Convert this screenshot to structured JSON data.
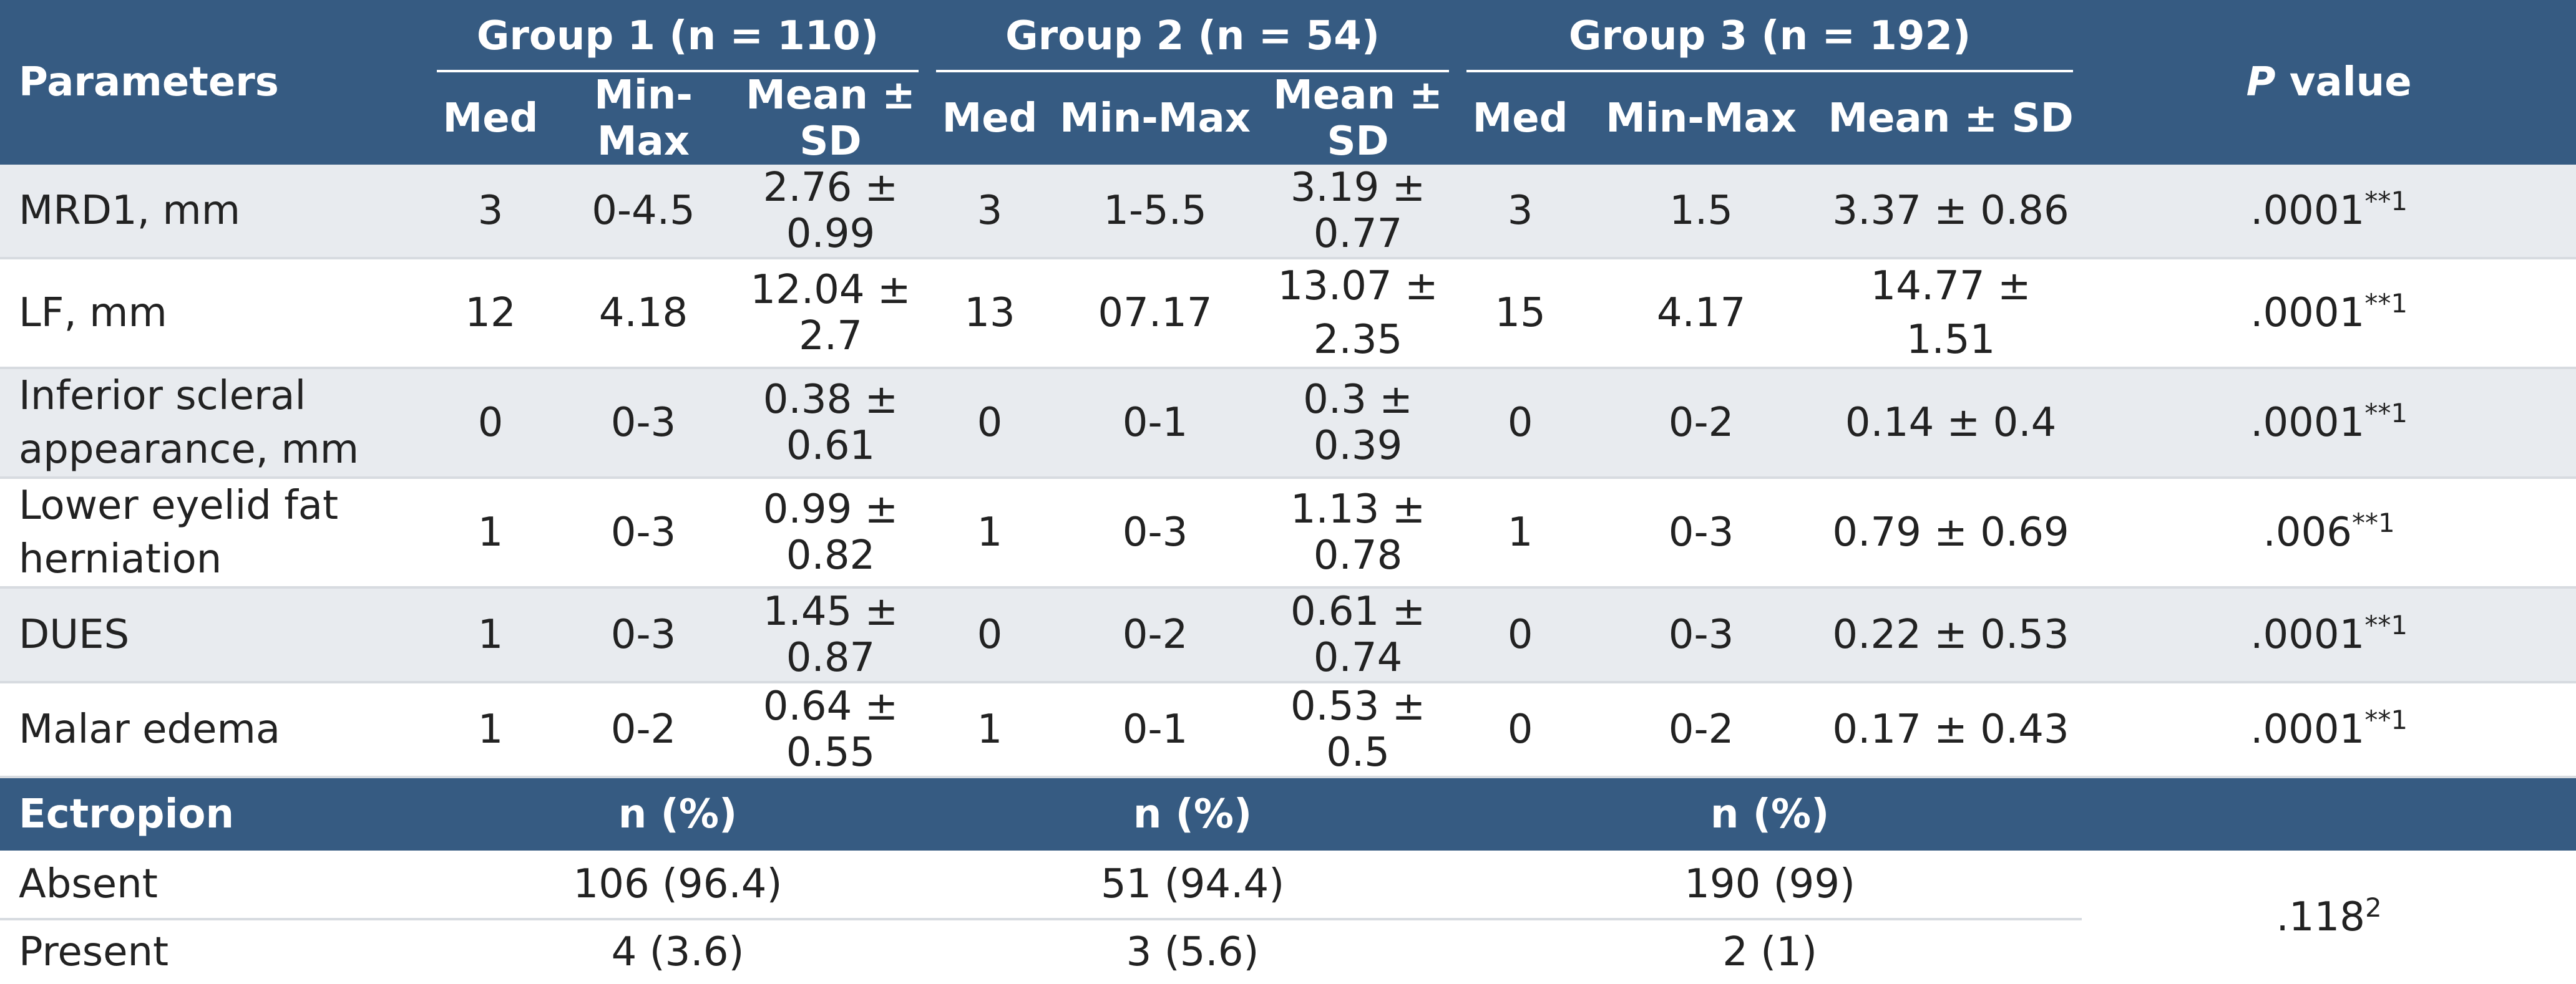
{
  "table": {
    "header": {
      "parameters": "Parameters",
      "groups": [
        "Group 1 (n = 110)",
        "Group 2 (n = 54)",
        "Group 3 (n = 192)"
      ],
      "p_value_italic": "P",
      "p_value_rest": " value",
      "sub_columns": [
        "Med",
        "Min-Max",
        "Mean ± SD"
      ]
    },
    "rows": [
      {
        "name": "MRD1, mm",
        "g1": [
          "3",
          "0-4.5",
          "2.76 ± 0.99"
        ],
        "g2": [
          "3",
          "1-5.5",
          "3.19 ± 0.77"
        ],
        "g3": [
          "3",
          "1.5",
          "3.37 ± 0.86"
        ],
        "p": ".0001",
        "p_sup": "**1"
      },
      {
        "name": "LF, mm",
        "g1": [
          "12",
          "4.18",
          "12.04 ± 2.7"
        ],
        "g2": [
          "13",
          "07.17",
          "13.07 ± 2.35"
        ],
        "g3": [
          "15",
          "4.17",
          "14.77 ± 1.51"
        ],
        "p": ".0001",
        "p_sup": "**1"
      },
      {
        "name": "Inferior scleral appearance, mm",
        "g1": [
          "0",
          "0-3",
          "0.38 ± 0.61"
        ],
        "g2": [
          "0",
          "0-1",
          "0.3 ± 0.39"
        ],
        "g3": [
          "0",
          "0-2",
          "0.14 ± 0.4"
        ],
        "p": ".0001",
        "p_sup": "**1"
      },
      {
        "name": "Lower eyelid fat herniation",
        "g1": [
          "1",
          "0-3",
          "0.99 ± 0.82"
        ],
        "g2": [
          "1",
          "0-3",
          "1.13 ± 0.78"
        ],
        "g3": [
          "1",
          "0-3",
          "0.79 ± 0.69"
        ],
        "p": ".006",
        "p_sup": "**1"
      },
      {
        "name": "DUES",
        "g1": [
          "1",
          "0-3",
          "1.45 ± 0.87"
        ],
        "g2": [
          "0",
          "0-2",
          "0.61 ± 0.74"
        ],
        "g3": [
          "0",
          "0-3",
          "0.22 ± 0.53"
        ],
        "p": ".0001",
        "p_sup": "**1"
      },
      {
        "name": "Malar edema",
        "g1": [
          "1",
          "0-2",
          "0.64 ± 0.55"
        ],
        "g2": [
          "1",
          "0-1",
          "0.53 ± 0.5"
        ],
        "g3": [
          "0",
          "0-2",
          "0.17 ± 0.43"
        ],
        "p": ".0001",
        "p_sup": "**1"
      }
    ],
    "ectropion": {
      "title": "Ectropion",
      "n_pct": "n (%)",
      "rows": [
        {
          "name": "Absent",
          "values": [
            "106 (96.4)",
            "51 (94.4)",
            "190 (99)"
          ]
        },
        {
          "name": "Present",
          "values": [
            "4 (3.6)",
            "3 (5.6)",
            "2 (1)"
          ]
        }
      ],
      "p": ".118",
      "p_sup": "2"
    }
  }
}
